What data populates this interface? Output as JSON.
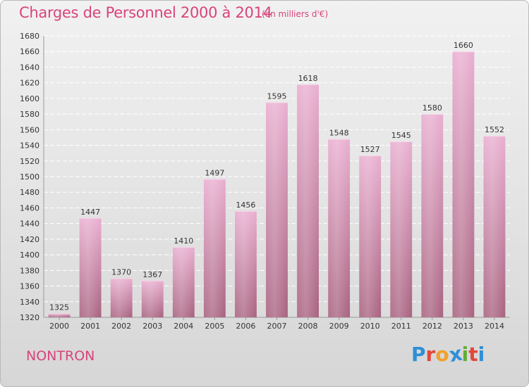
{
  "header": {
    "title": "Charges de Personnel 2000 à 2014",
    "subtitle": "(en milliers d'€)"
  },
  "footer": {
    "place": "NONTRON",
    "logo": "Proxiti"
  },
  "colors": {
    "accent": "#d8447c",
    "bar_top": "#e9aed0",
    "bar_bottom": "#a8627f",
    "logo": [
      "#2f8fd6",
      "#e2473b",
      "#f1a12b",
      "#2f8fd6",
      "#5fae34",
      "#e2473b",
      "#2f8fd6"
    ]
  },
  "chart_data": {
    "type": "bar",
    "categories": [
      "2000",
      "2001",
      "2002",
      "2003",
      "2004",
      "2005",
      "2006",
      "2007",
      "2008",
      "2009",
      "2010",
      "2011",
      "2012",
      "2013",
      "2014"
    ],
    "values": [
      1325,
      1447,
      1370,
      1367,
      1410,
      1497,
      1456,
      1595,
      1618,
      1548,
      1527,
      1545,
      1580,
      1660,
      1552
    ],
    "ylim": [
      1320,
      1680
    ],
    "yticks": [
      1320,
      1340,
      1360,
      1380,
      1400,
      1420,
      1440,
      1460,
      1480,
      1500,
      1520,
      1540,
      1560,
      1580,
      1600,
      1620,
      1640,
      1660,
      1680
    ],
    "grid": true,
    "title": "Charges de Personnel 2000 à 2014",
    "xlabel": "",
    "ylabel": ""
  }
}
